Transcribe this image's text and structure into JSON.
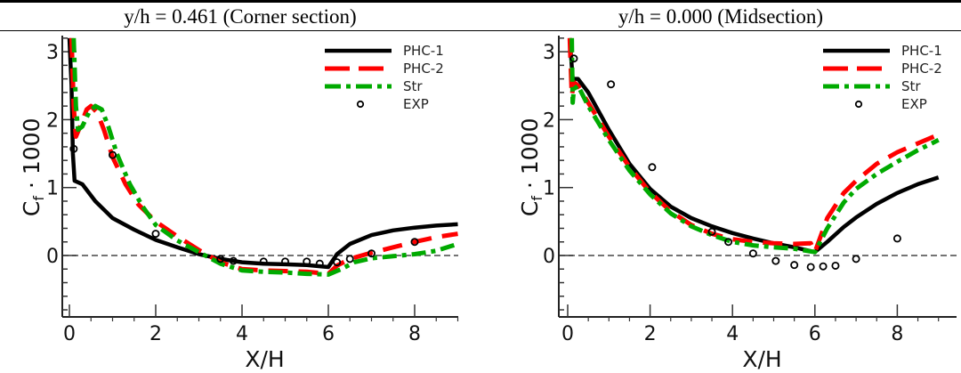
{
  "chart_data": [
    {
      "type": "line",
      "title": "y/h = 0.461 (Corner section)",
      "xlabel": "X/H",
      "ylabel": "C_f · 1000",
      "xlim": [
        -0.1,
        9.1
      ],
      "ylim": [
        -0.9,
        3.2
      ],
      "xticks": [
        0,
        2,
        4,
        6,
        8
      ],
      "yticks": [
        0,
        1,
        2,
        3
      ],
      "legend_position": "top-right",
      "zero_line": true,
      "series": [
        {
          "name": "PHC-1",
          "style": "solid",
          "color": "#000000",
          "x": [
            0.0,
            0.05,
            0.08,
            0.12,
            0.3,
            0.6,
            1.0,
            1.5,
            2.0,
            2.5,
            3.0,
            3.5,
            4.0,
            4.5,
            5.0,
            5.5,
            6.0,
            6.2,
            6.5,
            7.0,
            7.5,
            8.0,
            8.5,
            9.0
          ],
          "y": [
            3.2,
            2.5,
            1.5,
            1.1,
            1.05,
            0.8,
            0.55,
            0.38,
            0.23,
            0.12,
            0.02,
            -0.05,
            -0.1,
            -0.12,
            -0.13,
            -0.14,
            -0.17,
            0.02,
            0.17,
            0.3,
            0.37,
            0.41,
            0.44,
            0.46
          ]
        },
        {
          "name": "PHC-2",
          "style": "dashed",
          "color": "#ff0000",
          "x": [
            0.05,
            0.1,
            0.15,
            0.25,
            0.4,
            0.5,
            0.65,
            0.8,
            1.0,
            1.3,
            1.6,
            2.0,
            2.5,
            3.0,
            3.5,
            4.0,
            4.5,
            5.0,
            5.5,
            6.0,
            6.2,
            6.5,
            7.0,
            7.5,
            8.0,
            8.5,
            9.0
          ],
          "y": [
            3.2,
            2.2,
            1.75,
            1.9,
            2.15,
            2.2,
            2.1,
            1.85,
            1.45,
            1.05,
            0.75,
            0.5,
            0.28,
            0.08,
            -0.1,
            -0.2,
            -0.22,
            -0.23,
            -0.24,
            -0.27,
            -0.15,
            -0.05,
            0.04,
            0.12,
            0.2,
            0.27,
            0.32
          ]
        },
        {
          "name": "Str",
          "style": "dashdot",
          "color": "#00aa00",
          "x": [
            0.1,
            0.15,
            0.2,
            0.3,
            0.45,
            0.6,
            0.75,
            0.9,
            1.1,
            1.4,
            1.7,
            2.0,
            2.5,
            3.0,
            3.5,
            4.0,
            4.5,
            5.0,
            5.5,
            6.0,
            6.3,
            6.6,
            7.0,
            7.5,
            8.0,
            8.5,
            9.0
          ],
          "y": [
            3.2,
            2.2,
            1.85,
            1.9,
            2.1,
            2.2,
            2.15,
            1.9,
            1.5,
            1.05,
            0.72,
            0.45,
            0.22,
            0.05,
            -0.12,
            -0.22,
            -0.24,
            -0.25,
            -0.27,
            -0.28,
            -0.2,
            -0.1,
            -0.04,
            -0.01,
            0.02,
            0.07,
            0.17
          ]
        },
        {
          "name": "EXP",
          "style": "markers",
          "color": "#000000",
          "x": [
            0.1,
            1.0,
            2.0,
            3.5,
            3.8,
            4.5,
            5.0,
            5.5,
            5.8,
            6.2,
            6.5,
            7.0,
            8.0
          ],
          "y": [
            1.57,
            1.48,
            0.32,
            -0.05,
            -0.08,
            -0.09,
            -0.09,
            -0.09,
            -0.12,
            -0.1,
            -0.05,
            0.03,
            0.2
          ]
        }
      ]
    },
    {
      "type": "line",
      "title": "y/h = 0.000 (Midsection)",
      "xlabel": "X/H",
      "ylabel": "C_f · 1000",
      "xlim": [
        -0.1,
        9.1
      ],
      "ylim": [
        -0.9,
        3.2
      ],
      "xticks": [
        0,
        2,
        4,
        6,
        8
      ],
      "yticks": [
        0,
        1,
        2,
        3
      ],
      "legend_position": "top-right",
      "zero_line": true,
      "series": [
        {
          "name": "PHC-1",
          "style": "solid",
          "color": "#000000",
          "x": [
            0.05,
            0.12,
            0.25,
            0.5,
            1.0,
            1.5,
            2.0,
            2.5,
            3.0,
            3.5,
            4.0,
            4.5,
            5.0,
            5.5,
            6.0,
            6.3,
            6.7,
            7.0,
            7.5,
            8.0,
            8.5,
            9.0
          ],
          "y": [
            3.2,
            2.6,
            2.6,
            2.4,
            1.85,
            1.35,
            0.98,
            0.72,
            0.55,
            0.43,
            0.33,
            0.25,
            0.18,
            0.12,
            0.05,
            0.2,
            0.42,
            0.56,
            0.76,
            0.92,
            1.05,
            1.15
          ]
        },
        {
          "name": "PHC-2",
          "style": "dashed",
          "color": "#ff0000",
          "x": [
            0.05,
            0.1,
            0.15,
            0.25,
            0.5,
            1.0,
            1.5,
            2.0,
            2.5,
            3.0,
            3.5,
            4.0,
            4.5,
            5.0,
            5.5,
            5.9,
            6.0,
            6.3,
            6.7,
            7.0,
            7.5,
            8.0,
            8.5,
            9.0
          ],
          "y": [
            3.2,
            2.35,
            2.55,
            2.5,
            2.25,
            1.75,
            1.3,
            0.93,
            0.65,
            0.45,
            0.32,
            0.24,
            0.2,
            0.18,
            0.17,
            0.18,
            0.05,
            0.55,
            0.92,
            1.1,
            1.35,
            1.52,
            1.65,
            1.78
          ]
        },
        {
          "name": "Str",
          "style": "dashdot",
          "color": "#00aa00",
          "x": [
            0.1,
            0.12,
            0.15,
            0.25,
            0.5,
            1.0,
            1.5,
            2.0,
            2.5,
            3.0,
            3.5,
            4.0,
            4.5,
            5.0,
            5.5,
            6.0,
            6.3,
            6.7,
            7.0,
            7.5,
            8.0,
            8.5,
            9.0
          ],
          "y": [
            3.2,
            2.25,
            2.45,
            2.5,
            2.2,
            1.7,
            1.25,
            0.9,
            0.62,
            0.43,
            0.3,
            0.2,
            0.15,
            0.12,
            0.1,
            0.05,
            0.4,
            0.78,
            0.98,
            1.2,
            1.38,
            1.55,
            1.7
          ]
        },
        {
          "name": "EXP",
          "style": "markers",
          "color": "#000000",
          "x": [
            0.15,
            1.05,
            2.05,
            3.5,
            3.9,
            4.5,
            5.05,
            5.5,
            5.9,
            6.2,
            6.5,
            7.0,
            8.0
          ],
          "y": [
            2.9,
            2.52,
            1.3,
            0.35,
            0.2,
            0.03,
            -0.08,
            -0.14,
            -0.17,
            -0.16,
            -0.15,
            -0.05,
            0.25
          ]
        }
      ]
    }
  ]
}
